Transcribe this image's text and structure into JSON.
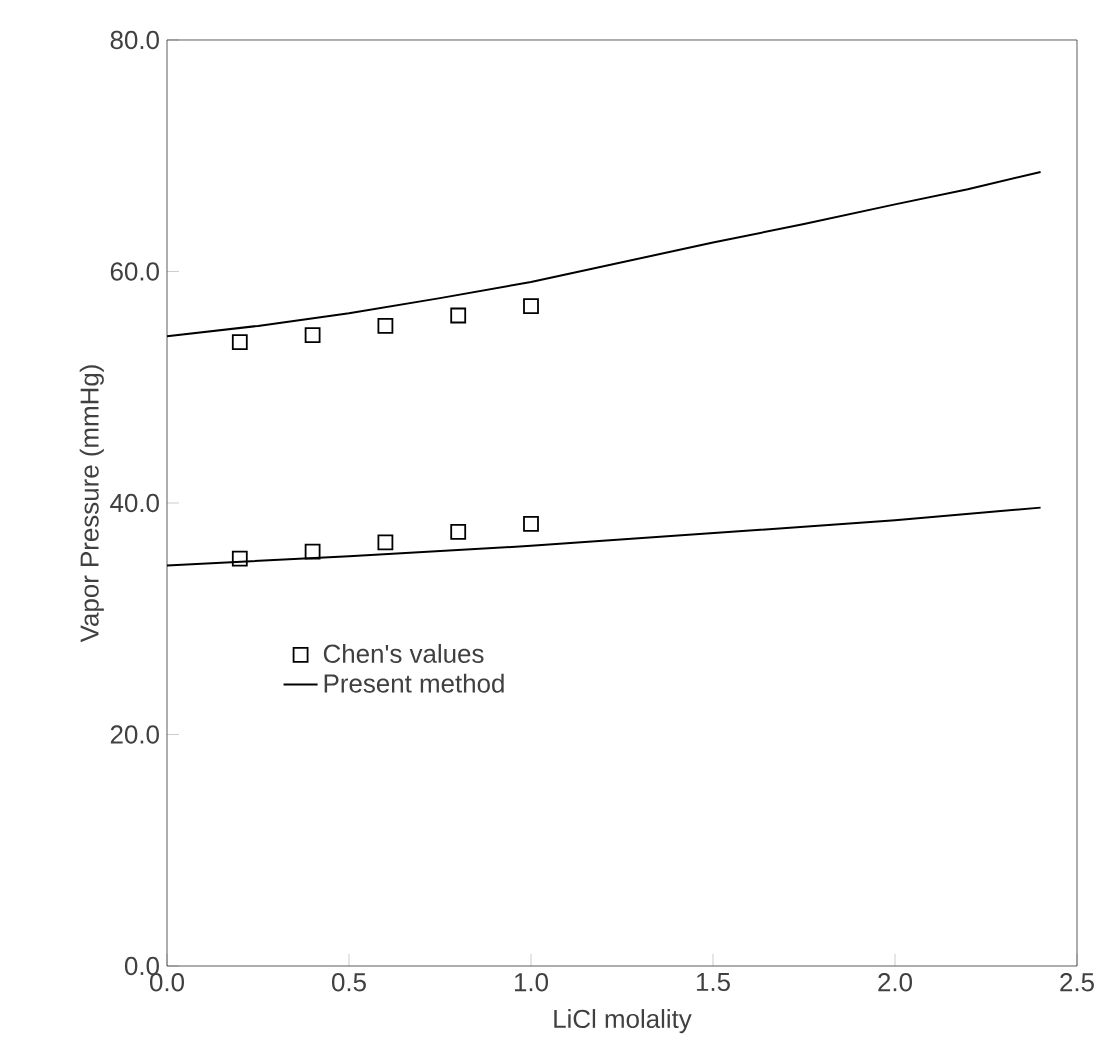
{
  "chart_data": {
    "type": "line",
    "xlabel": "LiCl molality",
    "ylabel": "Vapor Pressure (mmHg)",
    "xlim": [
      0,
      2.5
    ],
    "ylim": [
      0,
      80
    ],
    "xticks": [
      {
        "value": 0,
        "label": "0.0"
      },
      {
        "value": 0.5,
        "label": "0.5"
      },
      {
        "value": 1,
        "label": "1.0"
      },
      {
        "value": 1.5,
        "label": "1.5"
      },
      {
        "value": 2,
        "label": "2.0"
      },
      {
        "value": 2.5,
        "label": "2.5"
      }
    ],
    "yticks": [
      {
        "value": 0,
        "label": "0.0"
      },
      {
        "value": 20,
        "label": "20.0"
      },
      {
        "value": 40,
        "label": "40.0"
      },
      {
        "value": 60,
        "label": "60.0"
      },
      {
        "value": 80,
        "label": "80.0"
      }
    ],
    "legend": "left",
    "grid": false,
    "series": [
      {
        "name": "Chen's values",
        "type": "scatter",
        "marker": "square",
        "color": "#000000",
        "x": [
          0.2,
          0.4,
          0.6,
          0.8,
          1.0,
          0.2,
          0.4,
          0.6,
          0.8,
          1.0
        ],
        "values": [
          53.9,
          54.5,
          55.3,
          56.2,
          57.0,
          35.2,
          35.8,
          36.6,
          37.5,
          38.2
        ]
      },
      {
        "name": "Present method",
        "color": "#000000",
        "x": [
          0,
          0.25,
          0.5,
          0.75,
          1.0,
          1.25,
          1.5,
          1.75,
          2.0,
          2.2,
          2.4
        ],
        "values": [
          54.4,
          55.3,
          56.4,
          57.7,
          59.1,
          60.8,
          62.5,
          64.1,
          65.8,
          67.1,
          68.6
        ]
      },
      {
        "color": "#000000",
        "x": [
          0,
          0.5,
          1.0,
          1.5,
          2.0,
          2.4
        ],
        "values": [
          34.6,
          35.4,
          36.3,
          37.4,
          38.5,
          39.6
        ]
      }
    ]
  }
}
